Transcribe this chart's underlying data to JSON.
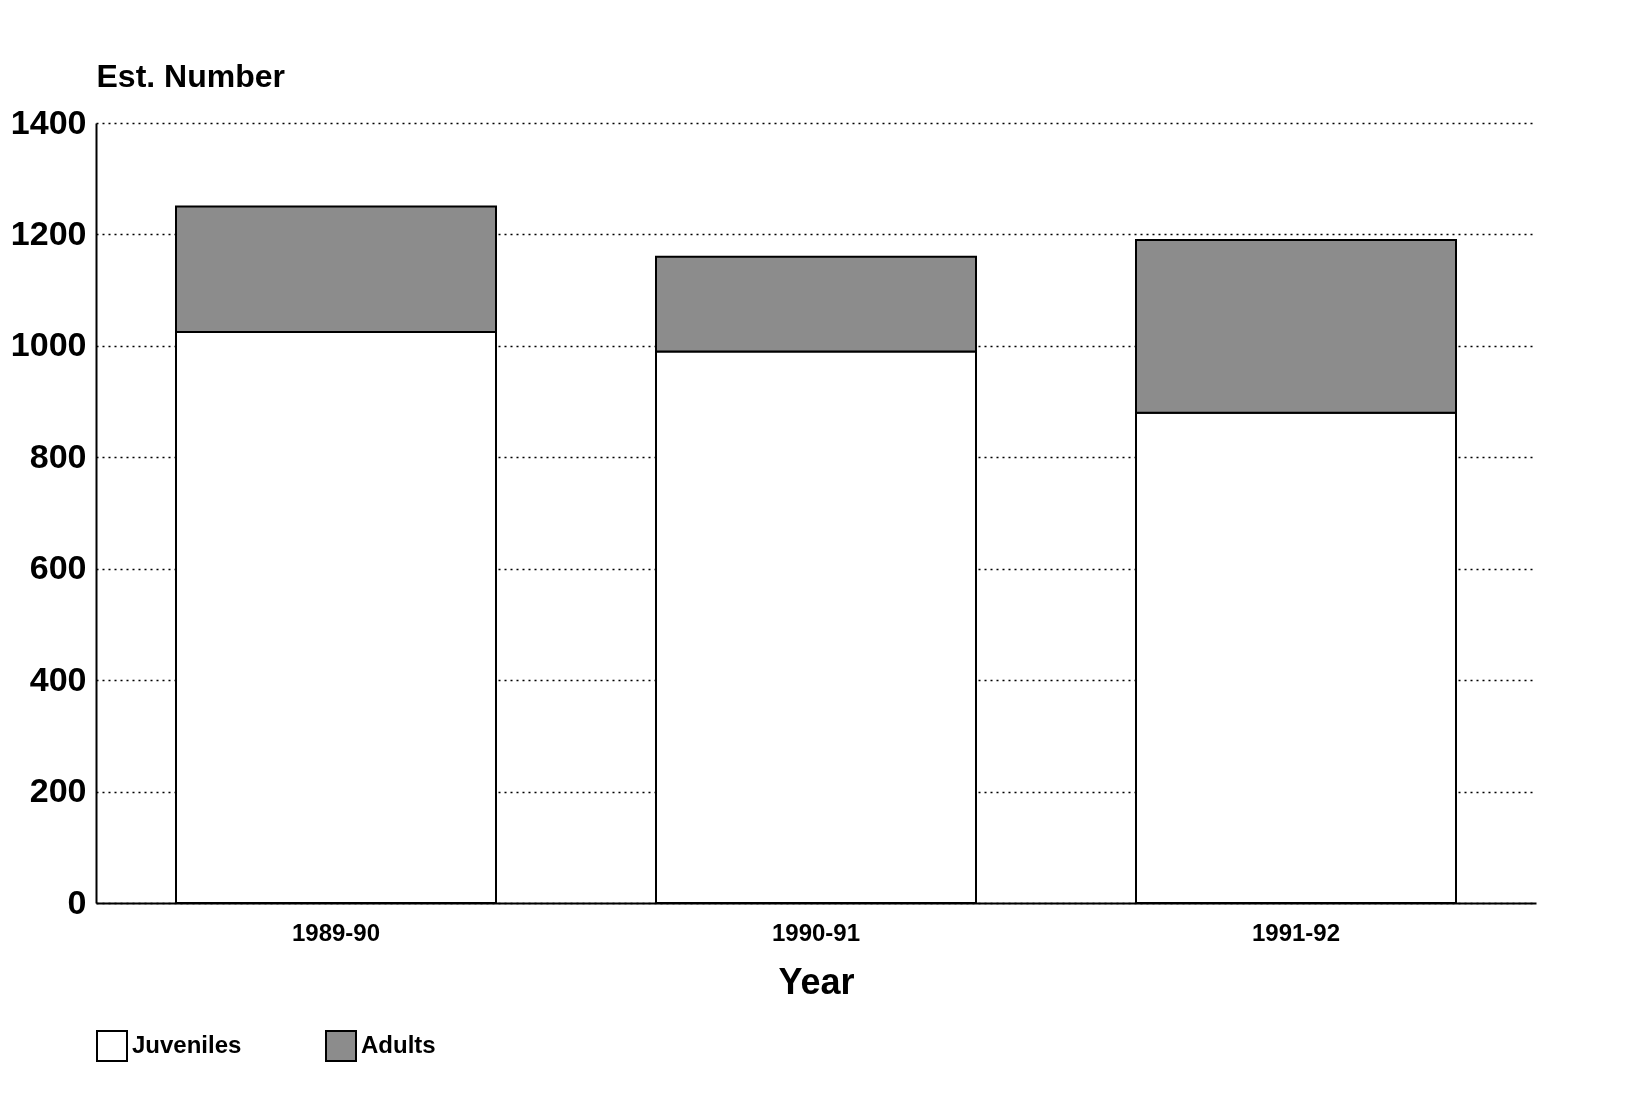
{
  "chart_data": {
    "type": "bar",
    "stacked": true,
    "xlabel": "Year",
    "ylabel": "Est. Number",
    "categories": [
      "1989-90",
      "1990-91",
      "1991-92"
    ],
    "series": [
      {
        "name": "Juveniles",
        "color": "#ffffff",
        "values": [
          1025,
          990,
          880
        ]
      },
      {
        "name": "Adults",
        "color": "#8c8c8c",
        "values": [
          225,
          170,
          310
        ]
      }
    ],
    "ylim": [
      0,
      1400
    ],
    "yticks": [
      0,
      200,
      400,
      600,
      800,
      1000,
      1200,
      1400
    ],
    "grid": "y",
    "legend": "bottom"
  }
}
